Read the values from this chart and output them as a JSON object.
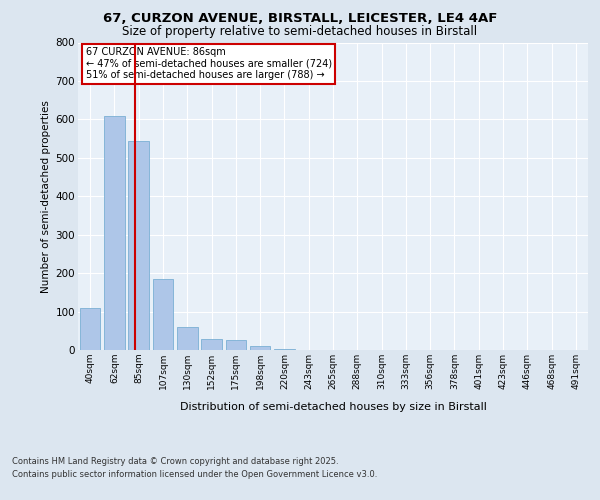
{
  "title_line1": "67, CURZON AVENUE, BIRSTALL, LEICESTER, LE4 4AF",
  "title_line2": "Size of property relative to semi-detached houses in Birstall",
  "xlabel": "Distribution of semi-detached houses by size in Birstall",
  "ylabel": "Number of semi-detached properties",
  "categories": [
    "40sqm",
    "62sqm",
    "85sqm",
    "107sqm",
    "130sqm",
    "152sqm",
    "175sqm",
    "198sqm",
    "220sqm",
    "243sqm",
    "265sqm",
    "288sqm",
    "310sqm",
    "333sqm",
    "356sqm",
    "378sqm",
    "401sqm",
    "423sqm",
    "446sqm",
    "468sqm",
    "491sqm"
  ],
  "values": [
    110,
    610,
    545,
    185,
    60,
    28,
    25,
    10,
    3,
    0,
    0,
    0,
    0,
    0,
    0,
    0,
    0,
    0,
    0,
    0,
    0
  ],
  "bar_color": "#aec6e8",
  "bar_edge_color": "#7aafd4",
  "vline_x": 1.85,
  "vline_color": "#cc0000",
  "annotation_title": "67 CURZON AVENUE: 86sqm",
  "annotation_line2": "← 47% of semi-detached houses are smaller (724)",
  "annotation_line3": "51% of semi-detached houses are larger (788) →",
  "annotation_box_color": "#cc0000",
  "ylim": [
    0,
    800
  ],
  "yticks": [
    0,
    100,
    200,
    300,
    400,
    500,
    600,
    700,
    800
  ],
  "footer_line1": "Contains HM Land Registry data © Crown copyright and database right 2025.",
  "footer_line2": "Contains public sector information licensed under the Open Government Licence v3.0.",
  "bg_color": "#dce6f0",
  "plot_bg_color": "#e8f0f8"
}
